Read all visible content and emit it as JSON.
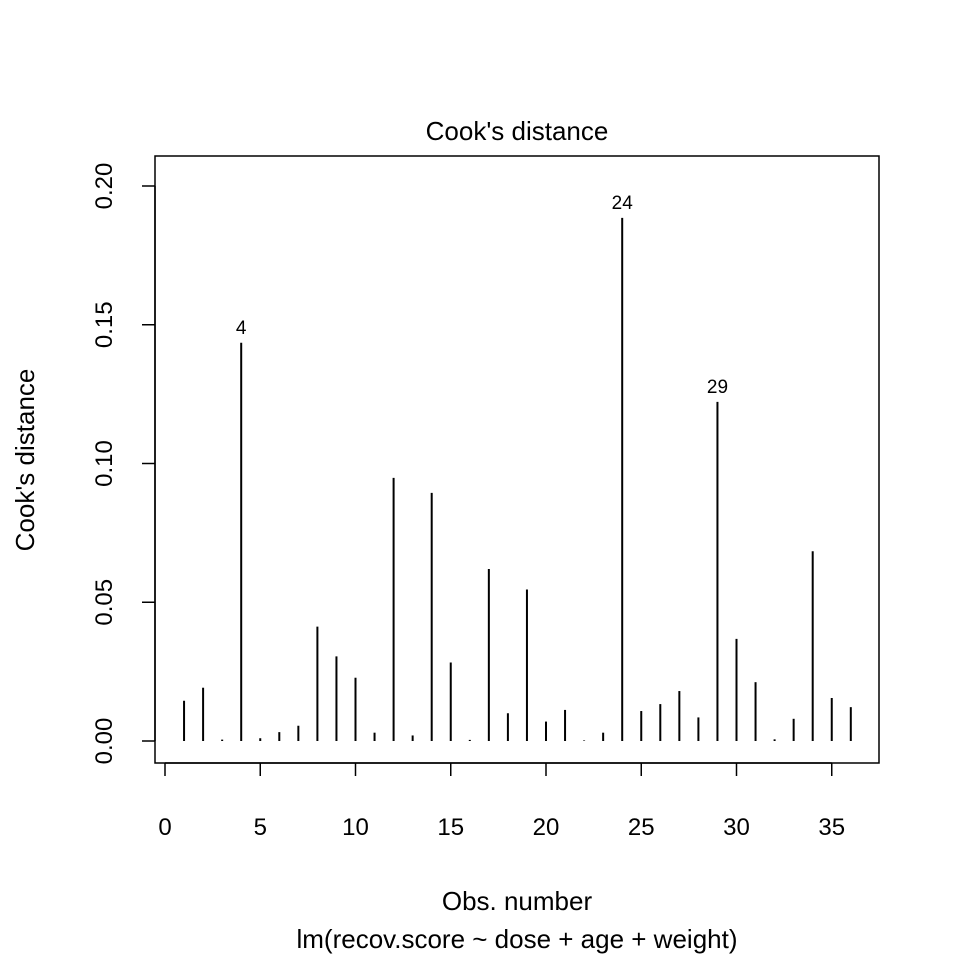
{
  "chart_data": {
    "type": "bar",
    "title": "Cook's distance",
    "xlabel": "Obs. number",
    "subtitle": "lm(recov.score ~ dose + age + weight)",
    "ylabel": "Cook's distance",
    "xlim": [
      0,
      37
    ],
    "ylim": [
      0,
      0.21
    ],
    "x_ticks": [
      0,
      5,
      10,
      15,
      20,
      25,
      30,
      35
    ],
    "x_tick_labels": [
      "0",
      "5",
      "10",
      "15",
      "20",
      "25",
      "30",
      "35"
    ],
    "y_ticks": [
      0,
      0.05,
      0.1,
      0.15,
      0.2
    ],
    "y_tick_labels": [
      "0.00",
      "0.05",
      "0.10",
      "0.15",
      "0.20"
    ],
    "x": [
      1,
      2,
      3,
      4,
      5,
      6,
      7,
      8,
      9,
      10,
      11,
      12,
      13,
      14,
      15,
      16,
      17,
      18,
      19,
      20,
      21,
      22,
      23,
      24,
      25,
      26,
      27,
      28,
      29,
      30,
      31,
      32,
      33,
      34,
      35,
      36
    ],
    "values": [
      0.0145,
      0.0192,
      0.0005,
      0.1435,
      0.001,
      0.0032,
      0.0055,
      0.0412,
      0.0305,
      0.0228,
      0.003,
      0.0948,
      0.002,
      0.0894,
      0.0283,
      0.0004,
      0.062,
      0.01,
      0.0546,
      0.007,
      0.0112,
      0.0002,
      0.003,
      0.1885,
      0.0108,
      0.0133,
      0.018,
      0.0085,
      0.1222,
      0.0368,
      0.0212,
      0.0006,
      0.008,
      0.0684,
      0.0155,
      0.0122
    ],
    "labeled_points": [
      {
        "x": 4,
        "label": "4"
      },
      {
        "x": 24,
        "label": "24"
      },
      {
        "x": 29,
        "label": "29"
      }
    ],
    "grid": false,
    "legend": false
  }
}
